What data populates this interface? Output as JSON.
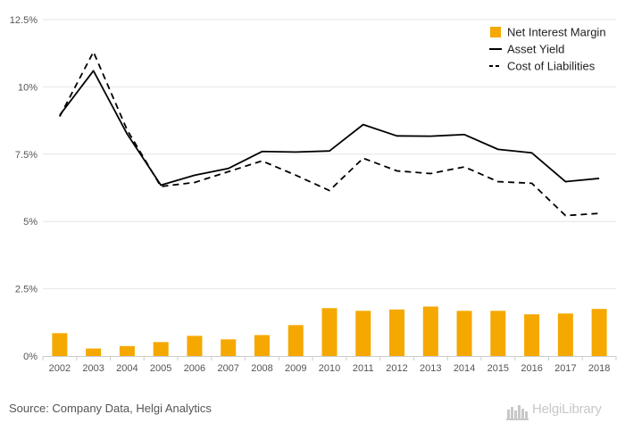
{
  "chart_data": {
    "type": "bar+line",
    "categories": [
      "2002",
      "2003",
      "2004",
      "2005",
      "2006",
      "2007",
      "2008",
      "2009",
      "2010",
      "2011",
      "2012",
      "2013",
      "2014",
      "2015",
      "2016",
      "2017",
      "2018"
    ],
    "series": [
      {
        "name": "Net Interest Margin",
        "type": "bar",
        "color": "#f5a800",
        "values": [
          0.85,
          0.28,
          0.37,
          0.52,
          0.75,
          0.62,
          0.78,
          1.15,
          1.78,
          1.68,
          1.73,
          1.84,
          1.68,
          1.68,
          1.55,
          1.58,
          1.75
        ]
      },
      {
        "name": "Asset Yield",
        "type": "line",
        "style": "solid",
        "color": "#000000",
        "values": [
          8.95,
          10.6,
          8.25,
          6.35,
          6.72,
          6.97,
          7.6,
          7.58,
          7.62,
          8.6,
          8.18,
          8.17,
          8.23,
          7.68,
          7.55,
          6.48,
          6.6
        ]
      },
      {
        "name": "Cost of Liabilities",
        "type": "line",
        "style": "dashed",
        "color": "#000000",
        "values": [
          8.9,
          11.3,
          8.4,
          6.3,
          6.45,
          6.85,
          7.25,
          6.72,
          6.15,
          7.35,
          6.88,
          6.78,
          7.03,
          6.48,
          6.42,
          5.22,
          5.3
        ]
      }
    ],
    "y_ticks": [
      "0%",
      "2.5%",
      "5%",
      "7.5%",
      "10%",
      "12.5%"
    ],
    "ylim": [
      0,
      12.5
    ],
    "grid": true,
    "legend_position": "top-right"
  },
  "footer": {
    "source": "Source: Company Data, Helgi Analytics",
    "brand": "HelgiLibrary"
  }
}
